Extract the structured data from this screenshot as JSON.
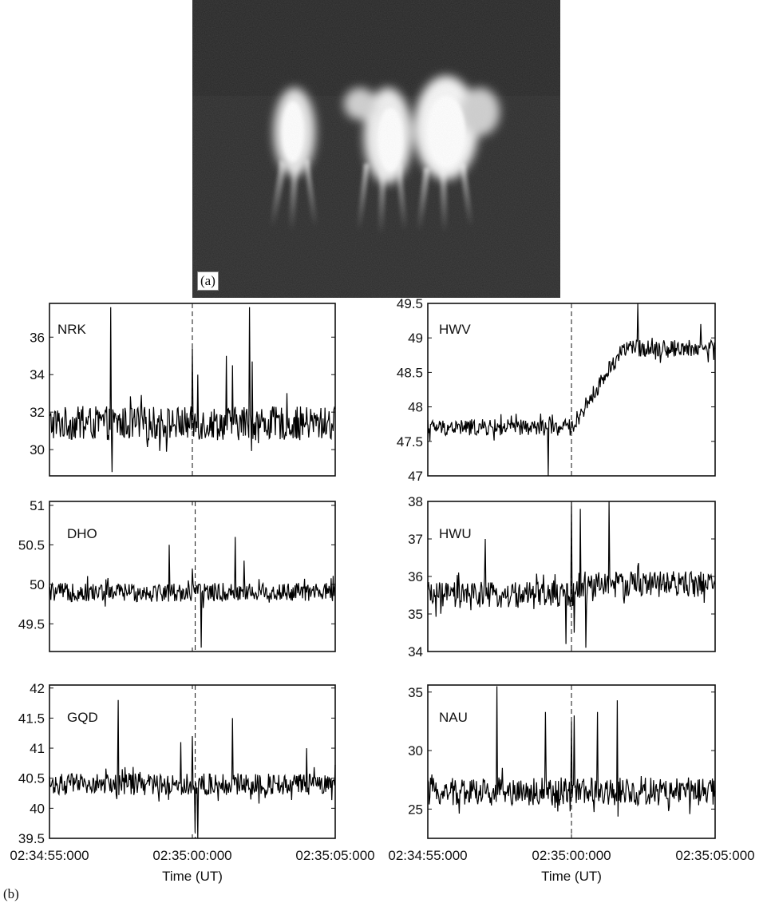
{
  "figure": {
    "panel_a_label": "(a)",
    "panel_b_label": "(b)"
  },
  "chart_data": [
    {
      "type": "line",
      "title": "NRK",
      "xlabel": "",
      "ylabel": "",
      "xticks": [
        "02:34:55:000",
        "02:35:00:000",
        "02:35:05:000"
      ],
      "ylim": [
        28.6,
        37.8
      ],
      "yticks": [
        30,
        32,
        34,
        36
      ],
      "yticklabels": [
        "30",
        "32",
        "34",
        "36"
      ],
      "event_time_fraction": 0.5,
      "baseline": 31.4,
      "noise": 0.9,
      "step": 0,
      "spikes": [
        {
          "t": 0.215,
          "v": 37.6
        },
        {
          "t": 0.22,
          "v": 28.8
        },
        {
          "t": 0.5,
          "v": 35.4
        },
        {
          "t": 0.52,
          "v": 34.0
        },
        {
          "t": 0.62,
          "v": 35.0
        },
        {
          "t": 0.64,
          "v": 34.5
        },
        {
          "t": 0.7,
          "v": 37.6
        },
        {
          "t": 0.71,
          "v": 34.7
        }
      ]
    },
    {
      "type": "line",
      "title": "HWV",
      "xlabel": "",
      "ylabel": "",
      "xticks": [
        "02:34:55:000",
        "02:35:00:000",
        "02:35:05:000"
      ],
      "ylim": [
        47,
        49.5
      ],
      "yticks": [
        47,
        47.5,
        48,
        48.5,
        49,
        49.5
      ],
      "yticklabels": [
        "47",
        "47.5",
        "48",
        "48.5",
        "49",
        "49.5"
      ],
      "event_time_fraction": 0.5,
      "baseline": 47.7,
      "noise": 0.12,
      "step": 1.15,
      "step_start": 0.5,
      "step_end": 0.68,
      "spikes": [
        {
          "t": 0.42,
          "v": 47.0
        },
        {
          "t": 0.73,
          "v": 49.5
        },
        {
          "t": 0.78,
          "v": 49.0
        },
        {
          "t": 0.95,
          "v": 49.2
        }
      ]
    },
    {
      "type": "line",
      "title": "DHO",
      "xlabel": "",
      "ylabel": "",
      "xticks": [
        "02:34:55:000",
        "02:35:00:000",
        "02:35:05:000"
      ],
      "ylim": [
        49.15,
        51.05
      ],
      "yticks": [
        49.5,
        50,
        50.5,
        51
      ],
      "yticklabels": [
        "49.5",
        "50",
        "50.5",
        "51"
      ],
      "event_time_fraction": 0.51,
      "baseline": 49.9,
      "noise": 0.12,
      "step": 0,
      "spikes": [
        {
          "t": 0.42,
          "v": 50.5
        },
        {
          "t": 0.5,
          "v": 50.2
        },
        {
          "t": 0.53,
          "v": 49.2
        },
        {
          "t": 0.65,
          "v": 50.6
        },
        {
          "t": 0.68,
          "v": 50.3
        }
      ]
    },
    {
      "type": "line",
      "title": "HWU",
      "xlabel": "",
      "ylabel": "",
      "xticks": [
        "02:34:55:000",
        "02:35:00:000",
        "02:35:05:000"
      ],
      "ylim": [
        34,
        38
      ],
      "yticks": [
        34,
        35,
        36,
        37,
        38
      ],
      "yticklabels": [
        "34",
        "35",
        "36",
        "37",
        "38"
      ],
      "event_time_fraction": 0.5,
      "baseline": 35.5,
      "noise": 0.35,
      "step": 0.3,
      "step_start": 0.5,
      "step_end": 0.55,
      "spikes": [
        {
          "t": 0.2,
          "v": 37.0
        },
        {
          "t": 0.48,
          "v": 34.2
        },
        {
          "t": 0.5,
          "v": 38.0
        },
        {
          "t": 0.51,
          "v": 34.5
        },
        {
          "t": 0.53,
          "v": 37.8
        },
        {
          "t": 0.55,
          "v": 34.1
        },
        {
          "t": 0.63,
          "v": 38.0
        }
      ]
    },
    {
      "type": "line",
      "title": "GQD",
      "xlabel": "Time (UT)",
      "ylabel": "",
      "xticks": [
        "02:34:55:000",
        "02:35:00:000",
        "02:35:05:000"
      ],
      "ylim": [
        39.5,
        42.05
      ],
      "yticks": [
        39.5,
        40,
        40.5,
        41,
        41.5,
        42
      ],
      "yticklabels": [
        "39.5",
        "40",
        "40.5",
        "41",
        "41.5",
        "42"
      ],
      "event_time_fraction": 0.51,
      "baseline": 40.4,
      "noise": 0.18,
      "step": 0,
      "spikes": [
        {
          "t": 0.24,
          "v": 41.8
        },
        {
          "t": 0.46,
          "v": 41.1
        },
        {
          "t": 0.5,
          "v": 41.2
        },
        {
          "t": 0.51,
          "v": 39.6
        },
        {
          "t": 0.52,
          "v": 39.5
        },
        {
          "t": 0.64,
          "v": 41.5
        },
        {
          "t": 0.9,
          "v": 41.0
        }
      ]
    },
    {
      "type": "line",
      "title": "NAU",
      "xlabel": "Time (UT)",
      "ylabel": "",
      "xticks": [
        "02:34:55:000",
        "02:35:00:000",
        "02:35:05:000"
      ],
      "ylim": [
        22.5,
        35.6
      ],
      "yticks": [
        25,
        30,
        35
      ],
      "yticklabels": [
        "25",
        "30",
        "35"
      ],
      "event_time_fraction": 0.5,
      "baseline": 26.5,
      "noise": 1.2,
      "step": 0,
      "spikes": [
        {
          "t": 0.24,
          "v": 35.5
        },
        {
          "t": 0.41,
          "v": 33.3
        },
        {
          "t": 0.5,
          "v": 32.5
        },
        {
          "t": 0.51,
          "v": 33.0
        },
        {
          "t": 0.66,
          "v": 34.3
        },
        {
          "t": 0.59,
          "v": 33.3
        }
      ]
    }
  ]
}
